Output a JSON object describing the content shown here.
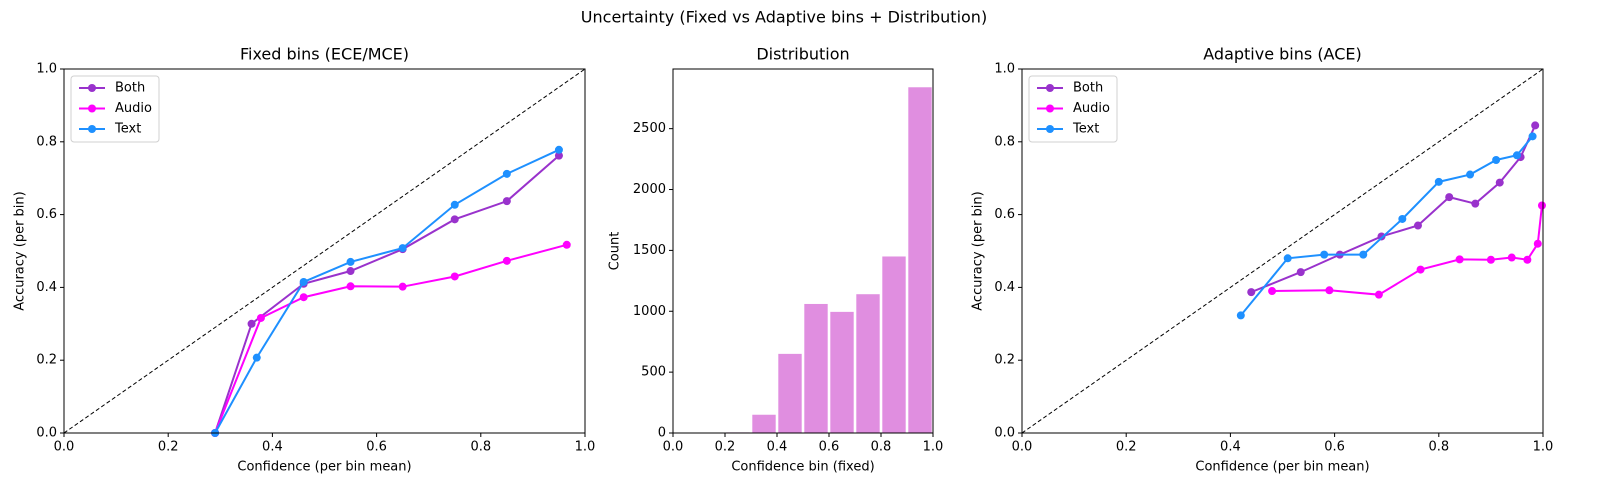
{
  "title": "Uncertainty (Fixed vs Adaptive bins + Distribution)",
  "chart_data": [
    {
      "type": "line",
      "title": "Fixed bins (ECE/MCE)",
      "xlabel": "Confidence (per bin mean)",
      "ylabel": "Accuracy (per bin)",
      "xlim": [
        0,
        1
      ],
      "ylim": [
        0,
        1
      ],
      "xticks": [
        {
          "value": 0,
          "label": "0.0"
        },
        0.2,
        0.4,
        0.6,
        0.8,
        {
          "value": 1,
          "label": "1.0"
        }
      ],
      "yticks": [
        {
          "value": 0,
          "label": "0.0"
        },
        0.2,
        0.4,
        0.6,
        0.8,
        {
          "value": 1,
          "label": "1.0"
        }
      ],
      "diagonal": true,
      "legend": "upper left",
      "series": [
        {
          "name": "Both",
          "color": "#9932cc",
          "x": [
            0.29,
            0.36,
            0.46,
            0.55,
            0.65,
            0.75,
            0.85,
            0.95
          ],
          "values": [
            0.0,
            0.3,
            0.41,
            0.445,
            0.505,
            0.587,
            0.637,
            0.762
          ]
        },
        {
          "name": "Audio",
          "color": "#ff00ff",
          "x": [
            0.29,
            0.378,
            0.46,
            0.55,
            0.65,
            0.75,
            0.85,
            0.965
          ],
          "values": [
            0.0,
            0.316,
            0.373,
            0.403,
            0.402,
            0.43,
            0.473,
            0.517
          ]
        },
        {
          "name": "Text",
          "color": "#1e90ff",
          "x": [
            0.29,
            0.37,
            0.46,
            0.55,
            0.65,
            0.75,
            0.85,
            0.95
          ],
          "values": [
            0.0,
            0.207,
            0.415,
            0.47,
            0.508,
            0.627,
            0.712,
            0.778
          ]
        }
      ]
    },
    {
      "type": "histogram",
      "title": "Distribution",
      "xlabel": "Confidence bin (fixed)",
      "ylabel": "Count",
      "xlim": [
        0,
        1
      ],
      "ylim": [
        0,
        2990
      ],
      "xticks": [
        {
          "value": 0,
          "label": "0.0"
        },
        0.2,
        0.4,
        0.6,
        0.8,
        {
          "value": 1,
          "label": "1.0"
        }
      ],
      "yticks": [
        0,
        500,
        1000,
        1500,
        2000,
        2500
      ],
      "color": "#e08ee0",
      "bins": [
        0,
        0.1,
        0.2,
        0.3,
        0.4,
        0.5,
        0.6,
        0.7,
        0.8,
        0.9,
        1.0
      ],
      "counts": [
        0,
        0,
        5,
        150,
        650,
        1060,
        995,
        1140,
        1450,
        2840
      ]
    },
    {
      "type": "line",
      "title": "Adaptive bins (ACE)",
      "xlabel": "Confidence (per bin mean)",
      "ylabel": "Accuracy (per bin)",
      "xlim": [
        0,
        1
      ],
      "ylim": [
        0,
        1
      ],
      "xticks": [
        {
          "value": 0,
          "label": "0.0"
        },
        0.2,
        0.4,
        0.6,
        0.8,
        {
          "value": 1,
          "label": "1.0"
        }
      ],
      "yticks": [
        {
          "value": 0,
          "label": "0.0"
        },
        0.2,
        0.4,
        0.6,
        0.8,
        {
          "value": 1,
          "label": "1.0"
        }
      ],
      "diagonal": true,
      "legend": "upper left",
      "series": [
        {
          "name": "Both",
          "color": "#9932cc",
          "x": [
            0.44,
            0.535,
            0.61,
            0.69,
            0.76,
            0.82,
            0.87,
            0.917,
            0.957,
            0.985
          ],
          "values": [
            0.387,
            0.442,
            0.49,
            0.54,
            0.57,
            0.648,
            0.63,
            0.688,
            0.758,
            0.845
          ]
        },
        {
          "name": "Audio",
          "color": "#ff00ff",
          "x": [
            0.48,
            0.59,
            0.685,
            0.765,
            0.84,
            0.9,
            0.94,
            0.97,
            0.99,
            0.998
          ],
          "values": [
            0.39,
            0.392,
            0.38,
            0.449,
            0.477,
            0.476,
            0.482,
            0.476,
            0.52,
            0.625
          ]
        },
        {
          "name": "Text",
          "color": "#1e90ff",
          "x": [
            0.42,
            0.51,
            0.58,
            0.655,
            0.73,
            0.8,
            0.86,
            0.91,
            0.95,
            0.98
          ],
          "values": [
            0.323,
            0.48,
            0.49,
            0.49,
            0.588,
            0.69,
            0.71,
            0.75,
            0.763,
            0.815
          ]
        }
      ]
    }
  ]
}
